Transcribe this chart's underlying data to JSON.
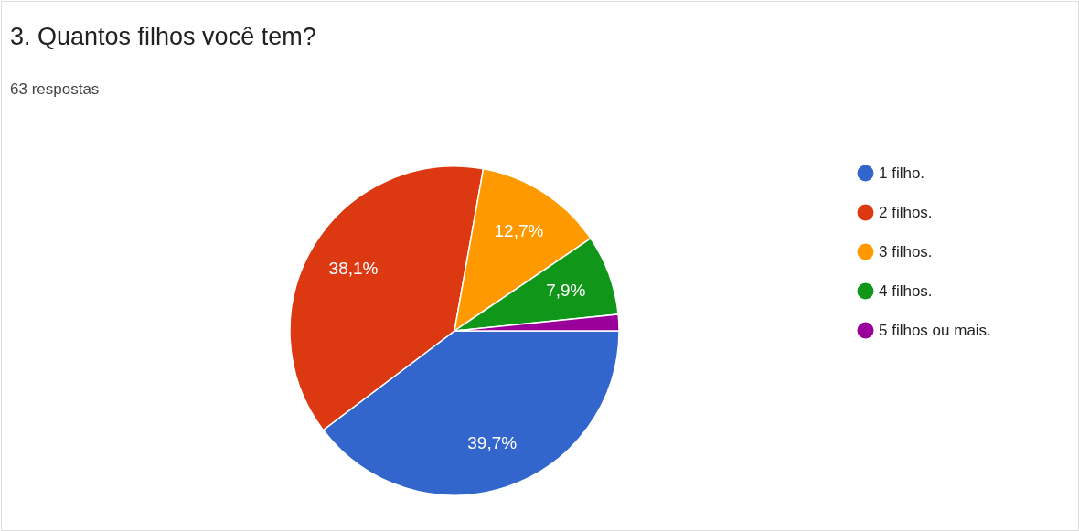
{
  "chart_data": {
    "type": "pie",
    "title": "3. Quantos filhos você tem?",
    "subtitle": "63 respostas",
    "categories": [
      "1 filho.",
      "2 filhos.",
      "3 filhos.",
      "4 filhos.",
      "5 filhos ou mais."
    ],
    "values": [
      39.7,
      38.1,
      12.7,
      7.9,
      1.6
    ],
    "colors": [
      "#3366cc",
      "#dc3912",
      "#ff9900",
      "#109618",
      "#990099"
    ],
    "value_labels": [
      "39,7%",
      "38,1%",
      "12,7%",
      "7,9%",
      null
    ],
    "legend": "right"
  }
}
